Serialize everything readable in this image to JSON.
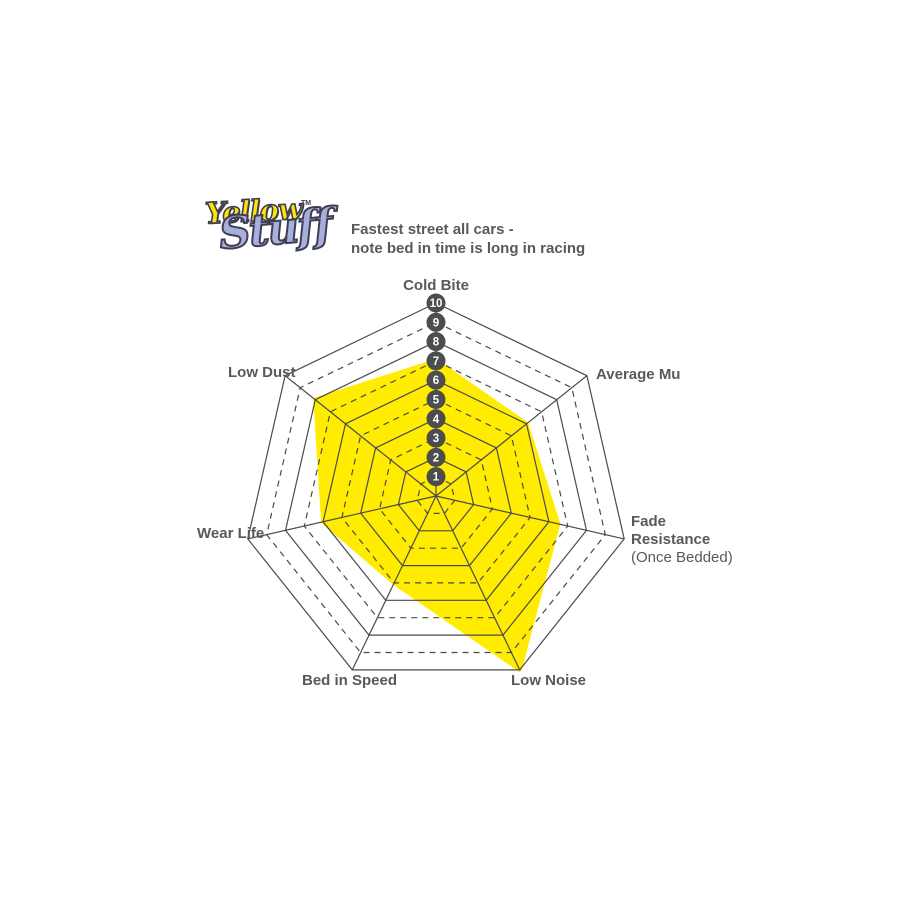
{
  "logo": {
    "word1": "Yellow",
    "tm": "TM",
    "word2": "Stuff",
    "colors": {
      "word1": "#FFE600",
      "word2": "#A9AFDB",
      "outline": "#3E3E57"
    }
  },
  "title": {
    "line1": "Fastest street all cars -",
    "line2": "note bed in time is long in racing"
  },
  "chart_data": {
    "type": "radar",
    "categories": [
      "Cold Bite",
      "Average Mu",
      "Fade Resistance (Once Bedded)",
      "Low Noise",
      "Bed in Speed",
      "Wear Life",
      "Low Dust"
    ],
    "series": [
      {
        "name": "Yellowstuff",
        "values": [
          7,
          6,
          6.5,
          10,
          5,
          6,
          8
        ]
      }
    ],
    "scale": {
      "min": 0,
      "max": 10,
      "ticks": [
        "1",
        "2",
        "3",
        "4",
        "5",
        "6",
        "7",
        "8",
        "9",
        "10"
      ],
      "tick_axis": "Cold Bite"
    },
    "grid": {
      "rings": 10,
      "shape": "heptagon",
      "style": "even rings solid, odd rings dashed",
      "spokes": 7
    },
    "legend_position": "none",
    "colors": {
      "fill": "#FFEC00",
      "grid": "#4A4A4A",
      "tick_circle": "#4D4D4D",
      "tick_text": "#FFFFFF",
      "label_text": "#58595B"
    }
  },
  "axis_labels": {
    "cold_bite": "Cold Bite",
    "average_mu": "Average Mu",
    "fade_line1": "Fade",
    "fade_line2": "Resistance",
    "fade_line3": "(Once Bedded)",
    "low_noise": "Low Noise",
    "bed_in_speed": "Bed in Speed",
    "wear_life": "Wear Life",
    "low_dust": "Low Dust"
  }
}
